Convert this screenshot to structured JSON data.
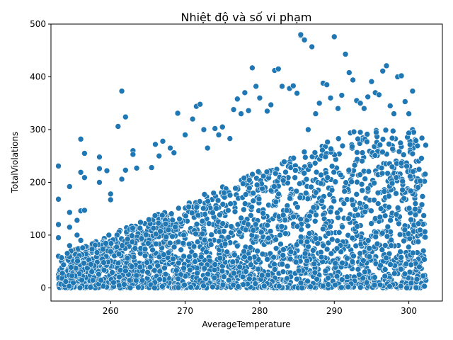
{
  "chart_data": {
    "type": "scatter",
    "title": "Nhiệt độ và số vi phạm",
    "xlabel": "AverageTemperature",
    "ylabel": "TotalViolations",
    "xlim": [
      252,
      304.5
    ],
    "ylim": [
      -25,
      500
    ],
    "xticks": [
      260,
      270,
      280,
      290,
      300
    ],
    "yticks": [
      0,
      100,
      200,
      300,
      400,
      500
    ],
    "grid": false,
    "color": "#1f77b4",
    "points": [
      [
        253,
        231
      ],
      [
        253,
        168
      ],
      [
        253,
        120
      ],
      [
        253,
        95
      ],
      [
        253,
        60
      ],
      [
        253,
        25
      ],
      [
        253,
        5
      ],
      [
        254.5,
        192
      ],
      [
        254.5,
        143
      ],
      [
        254.5,
        115
      ],
      [
        254.5,
        80
      ],
      [
        254.5,
        40
      ],
      [
        254.5,
        10
      ],
      [
        255.5,
        128
      ],
      [
        255.5,
        100
      ],
      [
        255.5,
        60
      ],
      [
        255.5,
        30
      ],
      [
        256,
        282
      ],
      [
        256,
        219
      ],
      [
        256,
        146
      ],
      [
        256,
        90
      ],
      [
        256.5,
        255
      ],
      [
        256.5,
        209
      ],
      [
        256.5,
        147
      ],
      [
        258.5,
        248
      ],
      [
        258.5,
        226
      ],
      [
        258.5,
        200
      ],
      [
        259.5,
        222
      ],
      [
        260,
        178
      ],
      [
        260,
        167
      ],
      [
        261,
        306
      ],
      [
        261.5,
        373
      ],
      [
        261.5,
        206
      ],
      [
        262,
        324
      ],
      [
        262,
        223
      ],
      [
        263,
        260
      ],
      [
        263,
        253
      ],
      [
        263.5,
        227
      ],
      [
        265.5,
        228
      ],
      [
        266,
        272
      ],
      [
        266.5,
        250
      ],
      [
        267,
        278
      ],
      [
        268,
        265
      ],
      [
        268.5,
        256
      ],
      [
        269,
        331
      ],
      [
        270,
        290
      ],
      [
        271,
        320
      ],
      [
        271.5,
        344
      ],
      [
        272,
        348
      ],
      [
        272.5,
        300
      ],
      [
        273,
        265
      ],
      [
        274,
        302
      ],
      [
        274.5,
        290
      ],
      [
        275,
        305
      ],
      [
        276,
        283
      ],
      [
        276.5,
        338
      ],
      [
        277,
        358
      ],
      [
        277.5,
        330
      ],
      [
        278,
        370
      ],
      [
        278.5,
        336
      ],
      [
        279,
        417
      ],
      [
        279.5,
        382
      ],
      [
        280,
        360
      ],
      [
        281,
        335
      ],
      [
        281.5,
        347
      ],
      [
        282,
        412
      ],
      [
        282.5,
        415
      ],
      [
        283,
        382
      ],
      [
        284,
        378
      ],
      [
        284.5,
        383
      ],
      [
        285,
        369
      ],
      [
        285.5,
        478
      ],
      [
        285.5,
        480
      ],
      [
        286,
        470
      ],
      [
        286.5,
        300
      ],
      [
        287,
        457
      ],
      [
        287.5,
        330
      ],
      [
        288,
        350
      ],
      [
        288.5,
        388
      ],
      [
        289,
        385
      ],
      [
        289.5,
        360
      ],
      [
        290,
        476
      ],
      [
        290.5,
        340
      ],
      [
        291,
        365
      ],
      [
        291.5,
        443
      ],
      [
        292,
        408
      ],
      [
        292.5,
        394
      ],
      [
        293,
        355
      ],
      [
        293.5,
        350
      ],
      [
        294,
        340
      ],
      [
        294.5,
        362
      ],
      [
        295,
        391
      ],
      [
        295.5,
        370
      ],
      [
        296,
        366
      ],
      [
        296.5,
        411
      ],
      [
        297,
        421
      ],
      [
        297.5,
        345
      ],
      [
        298,
        330
      ],
      [
        298.5,
        400
      ],
      [
        299,
        402
      ],
      [
        299.5,
        353
      ],
      [
        300,
        330
      ],
      [
        300.5,
        300
      ],
      [
        300.5,
        373
      ],
      [
        301,
        240
      ],
      [
        301.5,
        195
      ],
      [
        302,
        137
      ],
      [
        302,
        100
      ],
      [
        302,
        60
      ],
      [
        302,
        20
      ]
    ]
  }
}
